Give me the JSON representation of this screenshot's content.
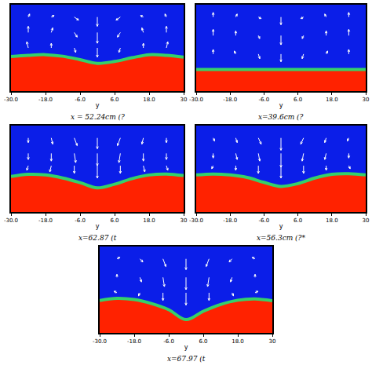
{
  "chart_data": [
    {
      "type": "area",
      "title": "x = 52.24cm (?",
      "x_label": "y",
      "color": "#ff2200",
      "grid": false,
      "tick_labels": "x",
      "xlim": [
        -30,
        30
      ],
      "ylim": [
        0,
        28
      ],
      "xticks": [
        {
          "value": -30,
          "label": "-30.0"
        },
        {
          "value": -18,
          "label": "-18.0"
        },
        {
          "value": -6,
          "label": "-6.0"
        },
        {
          "value": 6,
          "label": "6.0"
        },
        {
          "value": 18,
          "label": "18.0"
        },
        30
      ],
      "x": [
        -30,
        -24,
        -18,
        -12,
        -6,
        0,
        6,
        12,
        18,
        24,
        30
      ],
      "values": [
        11.2,
        11.6,
        11.8,
        11.3,
        10.2,
        9.0,
        9.6,
        10.8,
        11.8,
        11.6,
        11.0
      ],
      "vectors": [
        [
          -24,
          24,
          0.5,
          1
        ],
        [
          -16,
          24,
          1,
          0.5
        ],
        [
          -8,
          24,
          1.5,
          -1
        ],
        [
          0,
          24,
          0,
          -3
        ],
        [
          8,
          24,
          -1.5,
          -1
        ],
        [
          16,
          24,
          -1,
          0.5
        ],
        [
          24,
          24,
          -0.5,
          1
        ],
        [
          -24,
          19,
          0,
          2
        ],
        [
          -16,
          19,
          0.5,
          1.5
        ],
        [
          -8,
          19,
          1,
          -1.5
        ],
        [
          0,
          19,
          0,
          -3.5
        ],
        [
          8,
          19,
          -1,
          -1.5
        ],
        [
          16,
          19,
          -0.5,
          1.5
        ],
        [
          24,
          19,
          0,
          2
        ],
        [
          -24,
          14,
          -0.5,
          2
        ],
        [
          -16,
          14,
          0,
          1.5
        ],
        [
          -8,
          14,
          0.5,
          -1.5
        ],
        [
          0,
          14,
          0,
          -3
        ],
        [
          8,
          14,
          -0.5,
          -1.5
        ],
        [
          16,
          14,
          0,
          1.5
        ],
        [
          24,
          14,
          0.5,
          2
        ]
      ]
    },
    {
      "type": "area",
      "title": "x=39.6cm (?",
      "x_label": "y",
      "color": "#ff2200",
      "grid": false,
      "tick_labels": "x",
      "xlim": [
        -30,
        30
      ],
      "ylim": [
        0,
        28
      ],
      "xticks": [
        {
          "value": -30,
          "label": "-30.0"
        },
        {
          "value": -18,
          "label": "-18.0"
        },
        {
          "value": -6,
          "label": "-6.0"
        },
        {
          "value": 6,
          "label": "6.0"
        },
        {
          "value": 18,
          "label": "18.0"
        },
        30
      ],
      "x": [
        -30,
        -24,
        -18,
        -12,
        -6,
        0,
        6,
        12,
        18,
        24,
        30
      ],
      "values": [
        7.0,
        7.0,
        7.0,
        7.0,
        7.0,
        7.0,
        7.0,
        7.0,
        7.0,
        7.0,
        7.0
      ],
      "vectors": [
        [
          -24,
          24,
          0,
          1.5
        ],
        [
          -16,
          24,
          0.5,
          1
        ],
        [
          -8,
          24,
          1,
          -0.5
        ],
        [
          0,
          24,
          0,
          -2.5
        ],
        [
          8,
          24,
          -1,
          -0.5
        ],
        [
          16,
          24,
          -0.5,
          1
        ],
        [
          24,
          24,
          0,
          1.5
        ],
        [
          -24,
          18,
          0,
          2
        ],
        [
          -16,
          18,
          0,
          1.5
        ],
        [
          -8,
          18,
          0.5,
          -1
        ],
        [
          0,
          18,
          0,
          -3
        ],
        [
          8,
          18,
          -0.5,
          -1
        ],
        [
          16,
          18,
          0,
          1.5
        ],
        [
          24,
          18,
          0,
          2
        ],
        [
          -24,
          12,
          0,
          1.5
        ],
        [
          -16,
          12,
          -0.5,
          1
        ],
        [
          -8,
          12,
          0.5,
          -1.5
        ],
        [
          0,
          12,
          0,
          -2.5
        ],
        [
          8,
          12,
          -0.5,
          -1.5
        ],
        [
          16,
          12,
          0.5,
          1
        ],
        [
          24,
          12,
          0,
          1.5
        ]
      ]
    },
    {
      "type": "area",
      "title": "x=62.87 (t",
      "x_label": "y",
      "color": "#ff2200",
      "grid": false,
      "tick_labels": "x",
      "xlim": [
        -30,
        30
      ],
      "ylim": [
        0,
        28
      ],
      "xticks": [
        {
          "value": -30,
          "label": "-30.0"
        },
        {
          "value": -18,
          "label": "-18.0"
        },
        {
          "value": -6,
          "label": "-6.0"
        },
        {
          "value": 6,
          "label": "6.0"
        },
        {
          "value": 18,
          "label": "18.0"
        },
        30
      ],
      "x": [
        -30,
        -24,
        -18,
        -12,
        -6,
        0,
        6,
        12,
        18,
        24,
        30
      ],
      "values": [
        11.5,
        12.2,
        12.0,
        11.0,
        9.5,
        7.8,
        9.0,
        10.8,
        12.0,
        12.3,
        11.8
      ],
      "vectors": [
        [
          -24,
          24,
          0,
          -1.5
        ],
        [
          -16,
          24,
          0.5,
          -2
        ],
        [
          -8,
          24,
          1,
          -2.5
        ],
        [
          0,
          24,
          0,
          -3.5
        ],
        [
          8,
          24,
          -1,
          -2.5
        ],
        [
          16,
          24,
          -0.5,
          -2
        ],
        [
          24,
          24,
          0,
          -1.5
        ],
        [
          -24,
          19,
          0,
          -2
        ],
        [
          -16,
          19,
          0,
          -2.5
        ],
        [
          -8,
          19,
          0.5,
          -3
        ],
        [
          0,
          19,
          0,
          -4
        ],
        [
          8,
          19,
          -0.5,
          -3
        ],
        [
          16,
          19,
          0,
          -2.5
        ],
        [
          24,
          19,
          0,
          -2
        ],
        [
          -24,
          15,
          -0.5,
          -1.5
        ],
        [
          -16,
          15,
          -0.5,
          -2
        ],
        [
          -8,
          15,
          0,
          -2.5
        ],
        [
          0,
          15,
          0,
          -4
        ],
        [
          8,
          15,
          0,
          -2.5
        ],
        [
          16,
          15,
          0.5,
          -2
        ],
        [
          24,
          15,
          0.5,
          -1.5
        ]
      ]
    },
    {
      "type": "area",
      "title": "x=56.3cm (?*",
      "x_label": "y",
      "color": "#ff2200",
      "grid": false,
      "tick_labels": "x",
      "xlim": [
        -30,
        30
      ],
      "ylim": [
        0,
        28
      ],
      "xticks": [
        {
          "value": -30,
          "label": "-30.0"
        },
        {
          "value": -18,
          "label": "-18.0"
        },
        {
          "value": -6,
          "label": "-6.0"
        },
        {
          "value": 6,
          "label": "6.0"
        },
        {
          "value": 18,
          "label": "18.0"
        },
        30
      ],
      "x": [
        -30,
        -24,
        -18,
        -12,
        -6,
        0,
        6,
        12,
        18,
        24,
        30
      ],
      "values": [
        12.0,
        12.3,
        12.0,
        11.2,
        9.6,
        8.3,
        9.2,
        11.0,
        12.2,
        12.4,
        12.0
      ],
      "vectors": [
        [
          -24,
          24,
          0.5,
          -1
        ],
        [
          -16,
          24,
          0.5,
          -1.5
        ],
        [
          -8,
          24,
          1,
          -2
        ],
        [
          0,
          24,
          0,
          -4
        ],
        [
          8,
          24,
          -1,
          -2
        ],
        [
          16,
          24,
          -0.5,
          -1.5
        ],
        [
          24,
          24,
          -0.5,
          -1
        ],
        [
          -24,
          19,
          0,
          -1.5
        ],
        [
          -16,
          19,
          0.5,
          -2
        ],
        [
          -8,
          19,
          0.5,
          -2.5
        ],
        [
          0,
          19,
          0,
          -4.5
        ],
        [
          8,
          19,
          -0.5,
          -2.5
        ],
        [
          16,
          19,
          -0.5,
          -2
        ],
        [
          24,
          19,
          0,
          -1.5
        ],
        [
          -24,
          15,
          -0.5,
          -1
        ],
        [
          -16,
          15,
          0,
          -1.5
        ],
        [
          -8,
          15,
          0,
          -2.5
        ],
        [
          0,
          15,
          0,
          -4
        ],
        [
          8,
          15,
          0,
          -2.5
        ],
        [
          16,
          15,
          0,
          -1.5
        ],
        [
          24,
          15,
          0.5,
          -1
        ]
      ]
    },
    {
      "type": "area",
      "title": "x=67.97 (t",
      "x_label": "y",
      "color": "#ff2200",
      "grid": false,
      "tick_labels": "x",
      "xlim": [
        -30,
        30
      ],
      "ylim": [
        0,
        28
      ],
      "xticks": [
        {
          "value": -30,
          "label": "-30.0"
        },
        {
          "value": -18,
          "label": "-18.0"
        },
        {
          "value": -6,
          "label": "-6.0"
        },
        {
          "value": 6,
          "label": "6.0"
        },
        {
          "value": 18,
          "label": "18.0"
        },
        30
      ],
      "x": [
        -30,
        -24,
        -18,
        -12,
        -6,
        0,
        6,
        12,
        18,
        24,
        30
      ],
      "values": [
        10.5,
        11.2,
        10.8,
        9.5,
        7.5,
        4.3,
        7.0,
        9.2,
        10.6,
        11.0,
        10.4
      ],
      "vectors": [
        [
          -24,
          24,
          1,
          0.5
        ],
        [
          -16,
          24,
          1,
          -1
        ],
        [
          -8,
          24,
          1,
          -2.5
        ],
        [
          0,
          24,
          0,
          -3.5
        ],
        [
          8,
          24,
          -1,
          -2.5
        ],
        [
          16,
          24,
          -1,
          -1
        ],
        [
          24,
          24,
          -1,
          0.5
        ],
        [
          -24,
          18,
          0,
          1
        ],
        [
          -16,
          18,
          0.5,
          -1.5
        ],
        [
          -8,
          18,
          0.5,
          -3
        ],
        [
          0,
          18,
          0,
          -4
        ],
        [
          8,
          18,
          -0.5,
          -3
        ],
        [
          16,
          18,
          -0.5,
          -1.5
        ],
        [
          24,
          18,
          0,
          1
        ],
        [
          -24,
          13,
          -1,
          0.5
        ],
        [
          -16,
          13,
          -0.5,
          -1
        ],
        [
          -8,
          13,
          0,
          -2.5
        ],
        [
          0,
          13,
          0,
          -4
        ],
        [
          8,
          13,
          0,
          -2.5
        ],
        [
          16,
          13,
          0.5,
          -1
        ],
        [
          24,
          13,
          1,
          0.5
        ]
      ]
    }
  ]
}
